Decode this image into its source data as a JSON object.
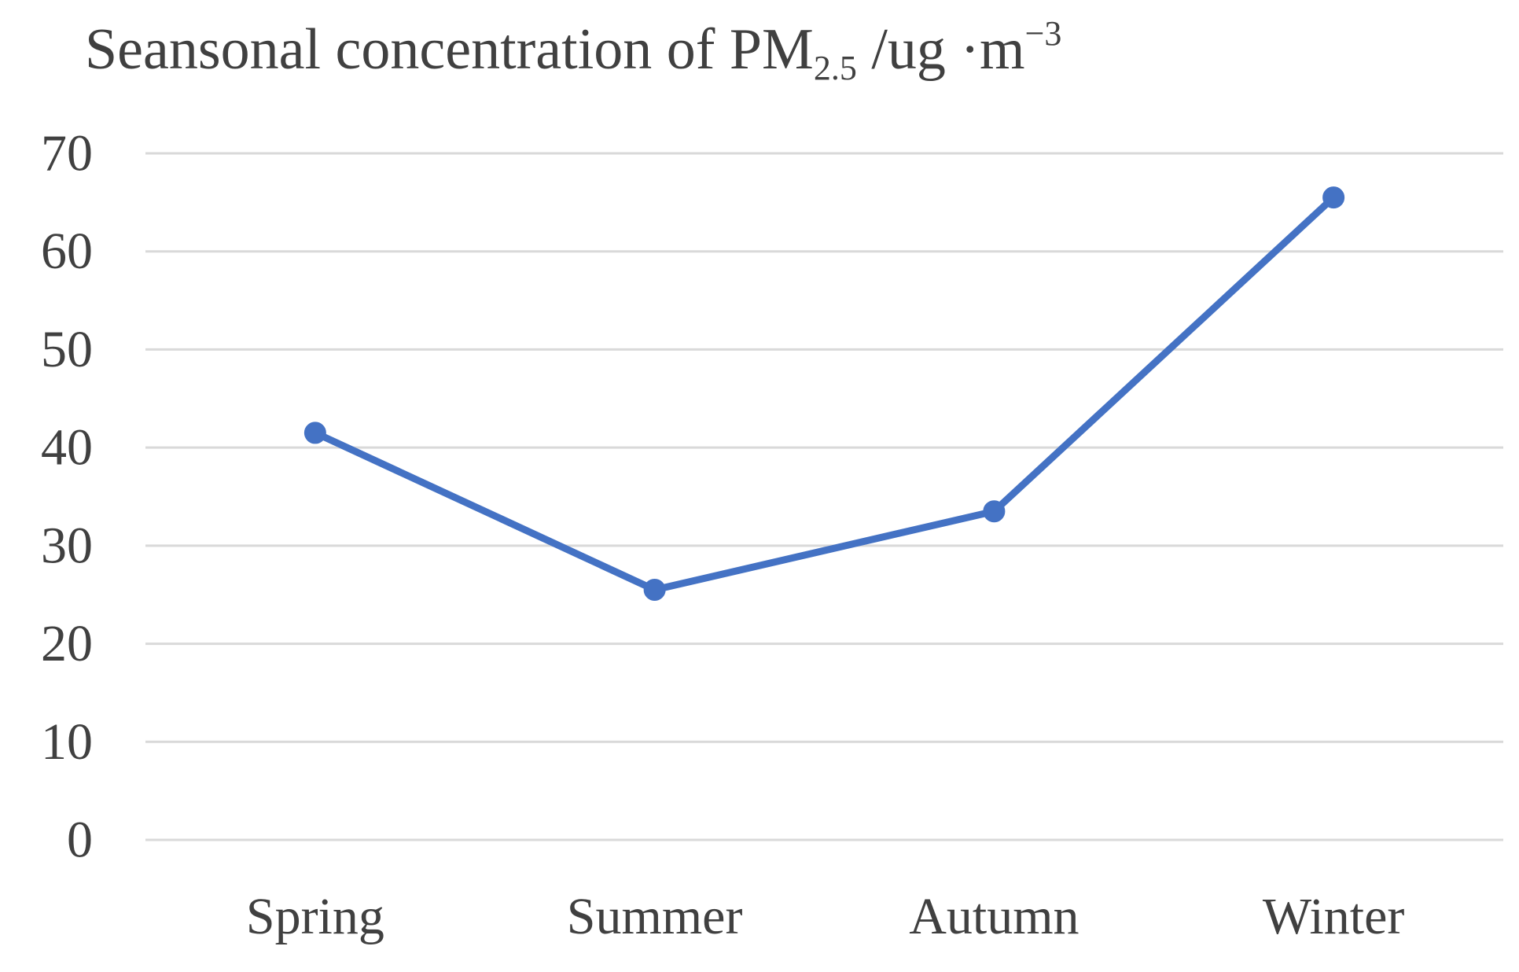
{
  "chart_data": {
    "type": "line",
    "title": {
      "main": "Seansonal concentration of PM",
      "subscript": "2.5",
      "unit": " /ug ·m",
      "superscript": "−3"
    },
    "categories": [
      "Spring",
      "Summer",
      "Autumn",
      "Winter"
    ],
    "series": [
      {
        "values": [
          41.5,
          25.5,
          33.5,
          65.5
        ],
        "color": "#4472c4",
        "markers": true
      }
    ],
    "ylim": [
      0,
      70
    ],
    "yticks": [
      0,
      10,
      20,
      30,
      40,
      50,
      60,
      70
    ],
    "grid": true,
    "legend": "none",
    "xlabel": "",
    "ylabel": ""
  }
}
